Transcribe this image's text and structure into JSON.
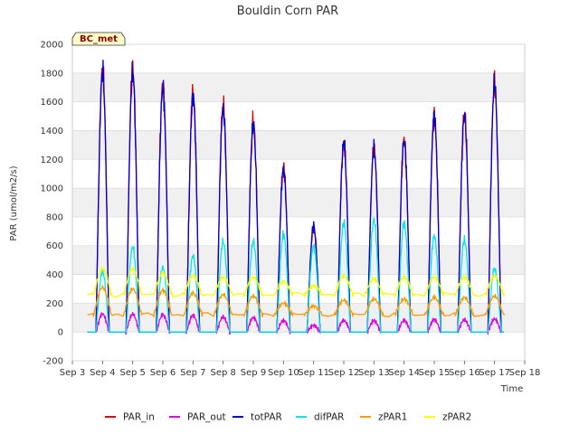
{
  "chart_data": {
    "type": "line",
    "title": "Bouldin Corn PAR",
    "xlabel": "Time",
    "ylabel": "PAR (umol/m2/s)",
    "badge": "BC_met",
    "xlim": [
      3,
      18
    ],
    "ylim": [
      -200,
      2000
    ],
    "yticks": [
      -200,
      0,
      200,
      400,
      600,
      800,
      1000,
      1200,
      1400,
      1600,
      1800,
      2000
    ],
    "xticks": [
      3,
      4,
      5,
      6,
      7,
      8,
      9,
      10,
      11,
      12,
      13,
      14,
      15,
      16,
      17,
      18
    ],
    "xtick_labels": [
      "Sep 3",
      "Sep 4",
      "Sep 5",
      "Sep 6",
      "Sep 7",
      "Sep 8",
      "Sep 9",
      "Sep 10",
      "Sep 11",
      "Sep 12",
      "Sep 13",
      "Sep 14",
      "Sep 15",
      "Sep 16",
      "Sep 17",
      "Sep 18"
    ],
    "days": [
      4,
      5,
      6,
      7,
      8,
      9,
      10,
      11,
      12,
      13,
      14,
      15,
      16,
      17
    ],
    "series": [
      {
        "name": "PAR_in",
        "color": "#dd0000",
        "peaks": [
          1820,
          1830,
          1720,
          1670,
          1580,
          1470,
          1150,
          720,
          1310,
          1280,
          1340,
          1500,
          1510,
          1720
        ]
      },
      {
        "name": "PAR_out",
        "color": "#dd00dd",
        "peaks": [
          125,
          125,
          120,
          115,
          105,
          100,
          80,
          45,
          80,
          80,
          80,
          85,
          85,
          90
        ]
      },
      {
        "name": "totPAR",
        "color": "#0000cc",
        "peaks": [
          1810,
          1800,
          1700,
          1640,
          1550,
          1440,
          1130,
          740,
          1320,
          1270,
          1330,
          1510,
          1510,
          1730
        ]
      },
      {
        "name": "difPAR",
        "color": "#00e5ee",
        "peaks": [
          420,
          590,
          450,
          530,
          630,
          630,
          680,
          600,
          760,
          780,
          760,
          670,
          640,
          440
        ]
      },
      {
        "name": "zPAR1",
        "color": "#ff9900",
        "peaks": [
          310,
          300,
          290,
          270,
          260,
          250,
          200,
          180,
          220,
          230,
          230,
          240,
          240,
          250
        ]
      },
      {
        "name": "zPAR2",
        "color": "#ffff00",
        "peaks": [
          440,
          440,
          410,
          390,
          380,
          380,
          350,
          320,
          390,
          370,
          380,
          380,
          380,
          390
        ]
      }
    ],
    "legend": [
      "PAR_in",
      "PAR_out",
      "totPAR",
      "difPAR",
      "zPAR1",
      "zPAR2"
    ]
  }
}
